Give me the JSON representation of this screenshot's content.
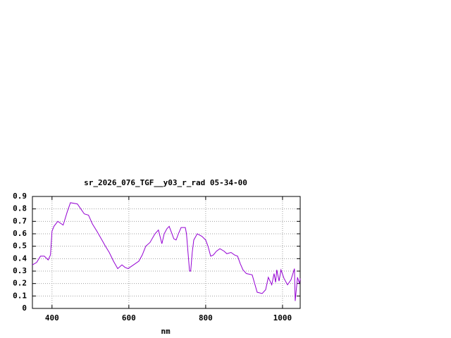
{
  "chart_data": {
    "type": "line",
    "title": "sr_2026_076_TGF__y03_r_rad 05-34-00",
    "xlabel": "nm",
    "x": [
      349,
      360,
      370,
      380,
      390,
      396,
      400,
      405,
      415,
      429,
      440,
      448,
      466,
      475,
      484,
      495,
      505,
      517,
      530,
      539,
      549,
      560,
      571,
      582,
      590,
      598,
      612,
      626,
      635,
      644,
      655,
      668,
      677,
      686,
      692,
      699,
      705,
      711,
      717,
      723,
      729,
      736,
      747,
      750,
      754,
      758,
      761,
      765,
      769,
      778,
      790,
      800,
      806,
      813,
      820,
      828,
      837,
      848,
      855,
      866,
      875,
      883,
      890,
      897,
      906,
      921,
      934,
      947,
      956,
      963,
      972,
      978,
      982,
      985,
      991,
      996,
      1004,
      1013,
      1022,
      1031,
      1033,
      1039,
      1044,
      1046
    ],
    "series": [
      {
        "name": "sr_2026_076_TGF__y03_r_rad 05-34-00",
        "color": "#9400d3",
        "values": [
          0.35,
          0.37,
          0.42,
          0.42,
          0.39,
          0.43,
          0.62,
          0.66,
          0.7,
          0.67,
          0.78,
          0.85,
          0.84,
          0.8,
          0.76,
          0.75,
          0.68,
          0.62,
          0.55,
          0.5,
          0.45,
          0.38,
          0.32,
          0.35,
          0.33,
          0.32,
          0.35,
          0.38,
          0.43,
          0.5,
          0.53,
          0.6,
          0.63,
          0.52,
          0.6,
          0.64,
          0.66,
          0.61,
          0.56,
          0.55,
          0.6,
          0.65,
          0.65,
          0.6,
          0.45,
          0.3,
          0.3,
          0.45,
          0.55,
          0.6,
          0.58,
          0.55,
          0.5,
          0.42,
          0.43,
          0.46,
          0.48,
          0.46,
          0.44,
          0.45,
          0.43,
          0.42,
          0.36,
          0.31,
          0.28,
          0.27,
          0.13,
          0.12,
          0.15,
          0.25,
          0.19,
          0.28,
          0.21,
          0.31,
          0.22,
          0.31,
          0.24,
          0.19,
          0.23,
          0.32,
          0.06,
          0.25,
          0.2,
          0.24
        ]
      }
    ],
    "xlim": [
      349,
      1046
    ],
    "xticks": [
      400,
      600,
      800,
      1000
    ],
    "ylim": [
      0,
      0.9
    ],
    "yticks": [
      0,
      0.1,
      0.2,
      0.3,
      0.4,
      0.5,
      0.6,
      0.7,
      0.8,
      0.9
    ],
    "grid": true
  }
}
